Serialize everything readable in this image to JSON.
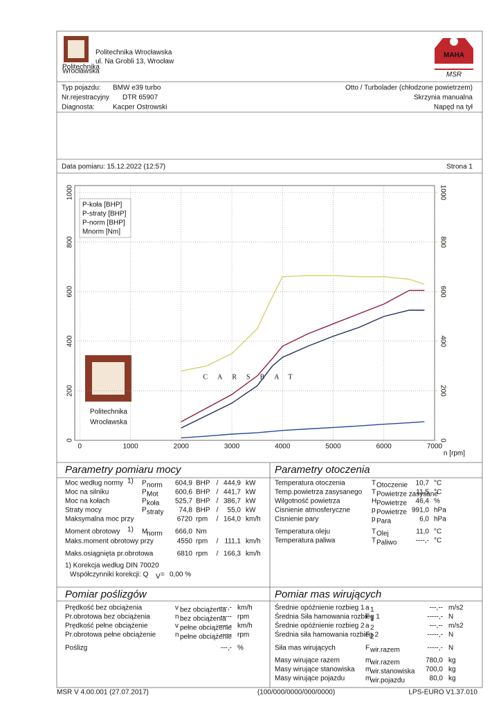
{
  "header": {
    "institution": "Politechnika Wrocławska",
    "address": "ul. Na Grobli 13, Wrocław",
    "logo_caption": [
      "Politechnika",
      "Wrocławska"
    ],
    "brand": "MAHA",
    "brand_sub": "MSR"
  },
  "vehicle": {
    "rows": [
      {
        "label": "Typ pojazdu:",
        "value": "BMW e39 turbo"
      },
      {
        "label": "Nr.rejestracyjny",
        "value": "DTR 65907"
      },
      {
        "label": "Diagnosta:",
        "value": "Kacper Ostrowski"
      }
    ],
    "right": [
      "Otto / Turbolader (chłodzone powietrzem)",
      "Skrzynia manualna",
      "Napęd na tył"
    ]
  },
  "date": "Data pomiaru: 15.12.2022 (12:57)",
  "page": "Strona 1",
  "chart_data": {
    "type": "line",
    "x_label": "n [rpm]",
    "watermark": "CARSBAT",
    "logo_text": [
      "Politechnika",
      "Wrocławska"
    ],
    "x": [
      2000,
      2500,
      3000,
      3500,
      3800,
      4000,
      4500,
      5000,
      5500,
      6000,
      6500,
      6800
    ],
    "series": [
      {
        "name": "P-koła [BHP]",
        "color": "#1f2d5a",
        "values": [
          50,
          100,
          150,
          220,
          300,
          335,
          380,
          420,
          455,
          500,
          525,
          525
        ]
      },
      {
        "name": "P-straty [BHP]",
        "color": "#2b4a9a",
        "values": [
          10,
          17,
          25,
          31,
          36,
          40,
          46,
          52,
          58,
          65,
          71,
          75
        ]
      },
      {
        "name": "P-norm [BHP]",
        "color": "#8b1c3a",
        "values": [
          75,
          130,
          185,
          260,
          330,
          380,
          430,
          470,
          510,
          550,
          605,
          605
        ]
      },
      {
        "name": "Mnorm [Nm]",
        "color": "#d8cf6a",
        "axis": "y2",
        "values": [
          280,
          300,
          350,
          450,
          580,
          660,
          665,
          665,
          660,
          660,
          650,
          630
        ]
      }
    ],
    "xlim": [
      -100,
      7000
    ],
    "xticks": [
      0,
      1000,
      2000,
      3000,
      4000,
      5000,
      6000,
      7000
    ],
    "ylim": [
      0,
      1000
    ],
    "yticks": [
      0,
      200,
      400,
      600,
      800,
      1000
    ],
    "y2lim": [
      0,
      1000
    ],
    "y2ticks": [
      0,
      200,
      400,
      600,
      800,
      1000
    ],
    "y2color": "#d8cf6a",
    "grid": true
  },
  "power": {
    "title": "Parametry pomiaru mocy",
    "rows": [
      {
        "label": "Moc według normy",
        "sup": "1)",
        "sym": "P",
        "sub": "norm",
        "v1": "604,9",
        "u1": "BHP",
        "sep": "/",
        "v2": "444,9",
        "u2": "kW",
        "color": "#c0282d"
      },
      {
        "label": "Moc na silniku",
        "sym": "P",
        "sub": "Mot",
        "v1": "600,6",
        "u1": "BHP",
        "sep": "/",
        "v2": "441,7",
        "u2": "kW",
        "color": "#c0282d"
      },
      {
        "label": "Moc na kołach",
        "sym": "P",
        "sub": "koła",
        "v1": "525,7",
        "u1": "BHP",
        "sep": "/",
        "v2": "386,7",
        "u2": "kW",
        "color": "#111111"
      },
      {
        "label": "Straty mocy",
        "sym": "P",
        "sub": "straty",
        "v1": "74,8",
        "u1": "BHP",
        "sep": "/",
        "v2": "55,0",
        "u2": "kW",
        "color": "#2b4a9a"
      },
      {
        "label": "Maksymalna moc przy",
        "v1": "6720",
        "u1": "rpm",
        "sep": "/",
        "v2": "164,0",
        "u2": "km/h",
        "color": "#111111"
      },
      {
        "label": "Moment obrotowy",
        "sup": "1)",
        "sym": "M",
        "sub": "norm",
        "v1": "666,0",
        "u1": "Nm",
        "color": "#d8cf6a"
      },
      {
        "label": "Maks.moment obrotowy przy",
        "v1": "4550",
        "u1": "rpm",
        "sep": "/",
        "v2": "111,1",
        "u2": "km/h",
        "color": "#111111"
      },
      {
        "label": "Maks.osiągnięta pr.obrotowa",
        "v1": "6810",
        "u1": "rpm",
        "sep": "/",
        "v2": "166,3",
        "u2": "km/h",
        "color": "#111111"
      }
    ],
    "note": "1) Korekcja według DIN 70020",
    "factor_label": "Współczynniki korekcji: Q",
    "factor_sub": "V",
    "factor_eq": "=",
    "factor_value": "0,00 %",
    "note_color": "#c0282d"
  },
  "ambient": {
    "title": "Parametry otoczenia",
    "rows": [
      {
        "label": "Temperatura otoczenia",
        "sym": "T",
        "sub": "Otoczenie",
        "value": "10,7",
        "unit": "°C"
      },
      {
        "label": "Temp.powietrza zasysanego",
        "sym": "T",
        "sub": "Powietrze zasysane",
        "value": "11,5",
        "unit": "°C"
      },
      {
        "label": "Wilgotność powietrza",
        "sym": "H",
        "sub": "Powietrze",
        "value": "46,4",
        "unit": "%"
      },
      {
        "label": "Cisnienie atmosferyczne",
        "sym": "p",
        "sub": "Powietrze",
        "value": "991,0",
        "unit": "hPa"
      },
      {
        "label": "Cisnienie pary",
        "sym": "p",
        "sub": "Para",
        "value": "6,0",
        "unit": "hPa"
      },
      {
        "label": "Temperatura oleju",
        "sym": "T",
        "sub": "Olej",
        "value": "11,0",
        "unit": "°C"
      },
      {
        "label": "Temperatura paliwa",
        "sym": "T",
        "sub": "Paliwo",
        "value": "----,-",
        "unit": "°C"
      }
    ]
  },
  "slip": {
    "title": "Pomiar poślizgów",
    "rows": [
      {
        "label": "Prędkość bez obciążenia",
        "sym": "v",
        "sub": "bez obciążenia",
        "value": "----,-",
        "unit": "km/h"
      },
      {
        "label": "Pr.obrotowa bez obciążenia",
        "sym": "n",
        "sub": "bez obciążenia",
        "value": "-----",
        "unit": "rpm"
      },
      {
        "label": "Prędkość pełne obciążenie",
        "sym": "v",
        "sub": "pełne obciążenie",
        "value": "----,-",
        "unit": "km/h"
      },
      {
        "label": "Pr.obrotowa pełne obciążenie",
        "sym": "n",
        "sub": "pełne obciążenie",
        "value": "-----",
        "unit": "rpm"
      },
      {
        "label": "Poślizg",
        "value": "---,-",
        "unit": "%"
      }
    ]
  },
  "inertia": {
    "title": "Pomiar mas wirujących",
    "rows": [
      {
        "label": "Średnie opóźnienie rozbieg 1",
        "sym": "a",
        "sub": "1",
        "value": "---,--",
        "unit": "m/s2"
      },
      {
        "label": "Średnia Siła hamowania rozbieg 1",
        "sym": "F",
        "sub": "1",
        "value": "-----,-",
        "unit": "N"
      },
      {
        "label": "Średnie opóźnienie rozbieg 2",
        "sym": "a",
        "sub": "2",
        "value": "---,--",
        "unit": "m/s2"
      },
      {
        "label": "Średnia siła hamowania rozbieg 2",
        "sym": "F",
        "sub": "2",
        "value": "-----,-",
        "unit": "N"
      },
      {
        "label": "Siła mas wirujących",
        "sym": "F",
        "sub": "wir.razem",
        "value": "-----,-",
        "unit": "N"
      },
      {
        "label": "Masy wirujące razem",
        "sym": "m",
        "sub": "wir.razem",
        "value": "780,0",
        "unit": "kg"
      },
      {
        "label": "Masy wirujące stanowiska",
        "sym": "m",
        "sub": "wir.stanowiska",
        "value": "700,0",
        "unit": "kg"
      },
      {
        "label": "Masy wirujące pojazdu",
        "sym": "m",
        "sub": "wir.pojazdu",
        "value": "80,0",
        "unit": "kg"
      }
    ]
  },
  "footer": [
    "MSR V 4.00.001 (27.07.2017)",
    "(100/000/0000/000/0000)",
    "LPS-EURO V1.37.010"
  ]
}
